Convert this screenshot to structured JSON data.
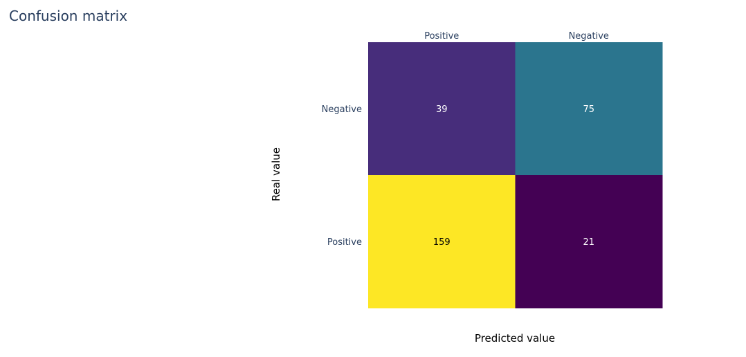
{
  "chart_data": {
    "type": "heatmap",
    "title": "Confusion matrix",
    "xlabel": "Predicted value",
    "ylabel": "Real value",
    "x_categories": [
      "Positive",
      "Negative"
    ],
    "y_categories_top_to_bottom": [
      "Negative",
      "Positive"
    ],
    "values": [
      [
        39,
        75
      ],
      [
        159,
        21
      ]
    ],
    "x_axis_position": "top",
    "colorscale": "viridis",
    "value_range": [
      21,
      159
    ],
    "cell_colors": [
      [
        "#472d7b",
        "#2b758e"
      ],
      [
        "#fde725",
        "#440154"
      ]
    ],
    "text_colors": [
      [
        "#ffffff",
        "#ffffff"
      ],
      [
        "#000000",
        "#ffffff"
      ]
    ],
    "colorbar": false,
    "grid": false
  }
}
